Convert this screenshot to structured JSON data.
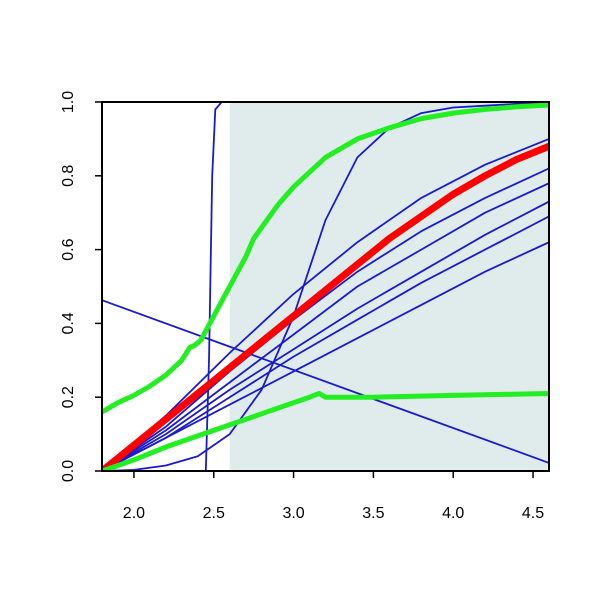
{
  "chart_data": {
    "type": "line",
    "title": "",
    "xlabel": "",
    "ylabel": "",
    "xlim": [
      1.8,
      4.6
    ],
    "ylim": [
      0.0,
      1.0
    ],
    "x_ticks": [
      {
        "value": 2.0,
        "label": "2.0"
      },
      {
        "value": 2.5,
        "label": "2.5"
      },
      {
        "value": 3.0,
        "label": "3.0"
      },
      {
        "value": 3.5,
        "label": "3.5"
      },
      {
        "value": 4.0,
        "label": "4.0"
      },
      {
        "value": 4.5,
        "label": "4.5"
      }
    ],
    "y_ticks": [
      {
        "value": 0.0,
        "label": "0.0"
      },
      {
        "value": 0.2,
        "label": "0.2"
      },
      {
        "value": 0.4,
        "label": "0.4"
      },
      {
        "value": 0.6,
        "label": "0.6"
      },
      {
        "value": 0.8,
        "label": "0.8"
      },
      {
        "value": 1.0,
        "label": "1.0"
      }
    ],
    "shaded_region": {
      "x_from": 2.6,
      "x_to": 4.6,
      "color": "#dfeceb"
    },
    "grid": false,
    "legend": "none",
    "colors": {
      "blue": "#1a1acd",
      "red": "#ff0000",
      "green": "#22ee22",
      "shade": "#dfeceb"
    },
    "series": [
      {
        "color": "blue",
        "width": 1.8,
        "x": [
          1.8,
          2.45,
          2.47,
          2.49,
          2.51,
          2.55,
          2.6,
          3.0,
          4.6
        ],
        "y": [
          0.0,
          0.0,
          0.3,
          0.8,
          0.98,
          1.0,
          1.0,
          1.0,
          1.0
        ]
      },
      {
        "color": "blue",
        "width": 1.8,
        "x": [
          1.8,
          4.6
        ],
        "y": [
          0.463,
          0.022
        ]
      },
      {
        "color": "blue",
        "width": 1.8,
        "x": [
          1.8,
          2.0,
          2.2,
          2.4,
          2.6,
          2.8,
          3.0,
          3.2,
          3.4,
          3.6,
          3.8,
          4.0,
          4.2,
          4.4,
          4.6
        ],
        "y": [
          0.0,
          0.003,
          0.015,
          0.04,
          0.1,
          0.22,
          0.42,
          0.68,
          0.85,
          0.93,
          0.97,
          0.985,
          0.99,
          0.995,
          0.997
        ]
      },
      {
        "color": "blue",
        "width": 1.8,
        "x": [
          1.8,
          2.2,
          2.6,
          3.0,
          3.4,
          3.8,
          4.2,
          4.6
        ],
        "y": [
          0.0,
          0.15,
          0.32,
          0.48,
          0.62,
          0.74,
          0.83,
          0.9
        ]
      },
      {
        "color": "blue",
        "width": 1.8,
        "x": [
          1.8,
          2.2,
          2.6,
          3.0,
          3.4,
          3.8,
          4.2,
          4.6
        ],
        "y": [
          0.0,
          0.12,
          0.27,
          0.41,
          0.54,
          0.65,
          0.74,
          0.82
        ]
      },
      {
        "color": "blue",
        "width": 1.8,
        "x": [
          1.8,
          2.2,
          2.6,
          3.0,
          3.4,
          3.8,
          4.2,
          4.6
        ],
        "y": [
          0.0,
          0.11,
          0.24,
          0.37,
          0.5,
          0.6,
          0.7,
          0.78
        ]
      },
      {
        "color": "blue",
        "width": 1.8,
        "x": [
          1.8,
          2.2,
          2.6,
          3.0,
          3.4,
          3.8,
          4.2,
          4.6
        ],
        "y": [
          0.0,
          0.1,
          0.22,
          0.33,
          0.44,
          0.54,
          0.64,
          0.73
        ]
      },
      {
        "color": "blue",
        "width": 1.8,
        "x": [
          1.8,
          2.2,
          2.6,
          3.0,
          3.4,
          3.8,
          4.2,
          4.6
        ],
        "y": [
          0.0,
          0.09,
          0.2,
          0.31,
          0.41,
          0.51,
          0.6,
          0.69
        ]
      },
      {
        "color": "blue",
        "width": 1.8,
        "x": [
          1.8,
          2.2,
          2.6,
          3.0,
          3.4,
          3.8,
          4.2,
          4.6
        ],
        "y": [
          0.0,
          0.09,
          0.18,
          0.27,
          0.36,
          0.45,
          0.54,
          0.62
        ]
      },
      {
        "color": "red",
        "width": 7,
        "x": [
          1.8,
          2.0,
          2.2,
          2.4,
          2.6,
          2.8,
          3.0,
          3.2,
          3.4,
          3.6,
          3.8,
          4.0,
          4.2,
          4.4,
          4.6
        ],
        "y": [
          0.0,
          0.07,
          0.14,
          0.21,
          0.28,
          0.35,
          0.42,
          0.49,
          0.56,
          0.63,
          0.69,
          0.75,
          0.8,
          0.845,
          0.88
        ]
      },
      {
        "color": "green",
        "width": 5,
        "x": [
          1.8,
          1.9,
          2.0,
          2.1,
          2.2,
          2.3,
          2.35,
          2.38,
          2.42,
          2.45,
          2.5,
          2.6,
          2.7,
          2.75,
          2.8,
          2.9,
          3.0,
          3.2,
          3.4,
          3.6,
          3.8,
          4.0,
          4.2,
          4.4,
          4.6
        ],
        "y": [
          0.16,
          0.185,
          0.205,
          0.23,
          0.26,
          0.3,
          0.335,
          0.34,
          0.355,
          0.38,
          0.42,
          0.5,
          0.58,
          0.63,
          0.66,
          0.72,
          0.77,
          0.85,
          0.9,
          0.93,
          0.955,
          0.97,
          0.98,
          0.987,
          0.992
        ]
      },
      {
        "color": "green",
        "width": 5,
        "x": [
          1.8,
          1.9,
          2.0,
          2.2,
          2.4,
          2.6,
          2.8,
          2.9,
          3.0,
          3.1,
          3.16,
          3.2,
          3.5,
          4.0,
          4.6
        ],
        "y": [
          0.0,
          0.015,
          0.03,
          0.065,
          0.095,
          0.125,
          0.155,
          0.17,
          0.185,
          0.2,
          0.21,
          0.2,
          0.2,
          0.205,
          0.21
        ]
      }
    ]
  }
}
